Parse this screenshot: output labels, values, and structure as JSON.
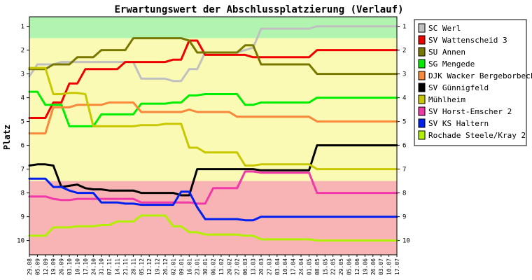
{
  "chart_data": {
    "type": "line",
    "title": "Erwartungswert der Abschlussplatzierung (Verlauf)",
    "ylabel": "Platz",
    "ylim": [
      0.6,
      10.6
    ],
    "y_reversed": true,
    "y_ticks": [
      1,
      2,
      3,
      4,
      5,
      6,
      7,
      8,
      9,
      10
    ],
    "grid": false,
    "legend_position": "right",
    "zones": [
      {
        "from": 0.6,
        "to": 1.5,
        "color": "#b0f4b0"
      },
      {
        "from": 1.5,
        "to": 7.5,
        "color": "#fafab4"
      },
      {
        "from": 7.5,
        "to": 10.6,
        "color": "#f8b4b4"
      }
    ],
    "x": [
      "29.08",
      "05.09",
      "12.09",
      "19.09",
      "26.09",
      "03.10",
      "10.10",
      "17.10",
      "24.10",
      "31.10",
      "07.11",
      "14.11",
      "21.11",
      "28.11",
      "05.12",
      "12.12",
      "19.12",
      "26.12",
      "02.01",
      "09.01",
      "16.01",
      "23.01",
      "30.01",
      "06.02",
      "13.02",
      "20.02",
      "27.02",
      "06.03",
      "13.03",
      "20.03",
      "27.03",
      "03.04",
      "10.04",
      "17.04",
      "24.04",
      "01.05",
      "08.05",
      "15.05",
      "22.05",
      "29.05",
      "05.06",
      "12.06",
      "19.06",
      "26.06",
      "03.07",
      "10.07",
      "17.07"
    ],
    "series": [
      {
        "name": "SC Werl",
        "color": "#c0c0c0",
        "values": [
          3.1,
          2.6,
          2.6,
          2.6,
          2.5,
          2.5,
          2.5,
          2.5,
          2.5,
          2.5,
          2.5,
          2.5,
          2.5,
          2.5,
          3.2,
          3.2,
          3.2,
          3.2,
          3.3,
          3.3,
          2.8,
          2.8,
          2.1,
          2.1,
          2.1,
          2.1,
          2.1,
          2.0,
          1.9,
          1.1,
          1.1,
          1.1,
          1.1,
          1.1,
          1.1,
          1.1,
          1.0,
          1.0,
          1.0,
          1.0,
          1.0,
          1.0,
          1.0,
          1.0,
          1.0,
          1.0,
          1.0
        ]
      },
      {
        "name": "SV Wattenscheid 3",
        "color": "#ee0000",
        "values": [
          4.85,
          4.85,
          4.85,
          4.2,
          4.2,
          3.4,
          3.4,
          2.8,
          2.8,
          2.8,
          2.8,
          2.8,
          2.5,
          2.5,
          2.5,
          2.5,
          2.5,
          2.5,
          2.4,
          2.4,
          1.6,
          1.6,
          2.2,
          2.2,
          2.2,
          2.2,
          2.2,
          2.2,
          2.3,
          2.3,
          2.3,
          2.3,
          2.3,
          2.3,
          2.3,
          2.3,
          2.0,
          2.0,
          2.0,
          2.0,
          2.0,
          2.0,
          2.0,
          2.0,
          2.0,
          2.0,
          2.0
        ]
      },
      {
        "name": "SU Annen",
        "color": "#787800",
        "values": [
          2.8,
          2.8,
          2.8,
          2.6,
          2.6,
          2.6,
          2.3,
          2.3,
          2.3,
          2.0,
          2.0,
          2.0,
          2.0,
          1.5,
          1.5,
          1.5,
          1.5,
          1.5,
          1.5,
          1.5,
          1.6,
          2.1,
          2.1,
          2.1,
          2.1,
          2.1,
          2.1,
          1.8,
          1.8,
          2.6,
          2.6,
          2.6,
          2.6,
          2.6,
          2.6,
          2.6,
          3.0,
          3.0,
          3.0,
          3.0,
          3.0,
          3.0,
          3.0,
          3.0,
          3.0,
          3.0,
          3.0
        ]
      },
      {
        "name": "SG Mengede",
        "color": "#00ee00",
        "values": [
          3.75,
          3.75,
          4.3,
          4.3,
          4.3,
          5.2,
          5.2,
          5.2,
          5.2,
          4.7,
          4.7,
          4.7,
          4.7,
          4.7,
          4.25,
          4.25,
          4.25,
          4.25,
          4.2,
          4.2,
          3.9,
          3.9,
          3.85,
          3.85,
          3.85,
          3.85,
          3.85,
          4.3,
          4.3,
          4.2,
          4.2,
          4.2,
          4.2,
          4.2,
          4.2,
          4.2,
          4.0,
          4.0,
          4.0,
          4.0,
          4.0,
          4.0,
          4.0,
          4.0,
          4.0,
          4.0,
          4.0
        ]
      },
      {
        "name": "DJK Wacker Bergeborbeck",
        "color": "#f8883a",
        "values": [
          5.5,
          5.5,
          5.5,
          4.4,
          4.4,
          4.4,
          4.3,
          4.3,
          4.3,
          4.3,
          4.2,
          4.2,
          4.2,
          4.2,
          4.6,
          4.6,
          4.6,
          4.6,
          4.6,
          4.6,
          4.5,
          4.6,
          4.6,
          4.6,
          4.6,
          4.6,
          4.8,
          4.8,
          4.8,
          4.8,
          4.8,
          4.8,
          4.8,
          4.8,
          4.8,
          4.8,
          5.0,
          5.0,
          5.0,
          5.0,
          5.0,
          5.0,
          5.0,
          5.0,
          5.0,
          5.0,
          5.0
        ]
      },
      {
        "name": "SV Günnigfeld",
        "color": "#000000",
        "values": [
          6.85,
          6.8,
          6.8,
          6.85,
          7.75,
          7.7,
          7.65,
          7.8,
          7.85,
          7.85,
          7.9,
          7.9,
          7.9,
          7.9,
          8.0,
          8.0,
          8.0,
          8.0,
          8.0,
          8.1,
          8.1,
          7.0,
          7.0,
          7.0,
          7.0,
          7.0,
          7.0,
          7.0,
          7.0,
          7.05,
          7.05,
          7.05,
          7.05,
          7.05,
          7.05,
          7.05,
          6.0,
          6.0,
          6.0,
          6.0,
          6.0,
          6.0,
          6.0,
          6.0,
          6.0,
          6.0,
          6.0
        ]
      },
      {
        "name": "Mühlheim",
        "color": "#c8c800",
        "values": [
          2.75,
          2.75,
          2.75,
          3.85,
          3.85,
          3.8,
          3.8,
          3.85,
          5.2,
          5.2,
          5.2,
          5.2,
          5.2,
          5.2,
          5.15,
          5.15,
          5.15,
          5.1,
          5.1,
          5.1,
          6.1,
          6.1,
          6.3,
          6.3,
          6.3,
          6.3,
          6.3,
          6.85,
          6.85,
          6.8,
          6.8,
          6.8,
          6.8,
          6.8,
          6.8,
          6.8,
          7.0,
          7.0,
          7.0,
          7.0,
          7.0,
          7.0,
          7.0,
          7.0,
          7.0,
          7.0,
          7.0
        ]
      },
      {
        "name": "SV Horst-Emscher 2",
        "color": "#f038a8",
        "values": [
          8.15,
          8.15,
          8.15,
          8.25,
          8.3,
          8.3,
          8.25,
          8.25,
          8.25,
          8.25,
          8.25,
          8.25,
          8.25,
          8.25,
          8.4,
          8.4,
          8.4,
          8.4,
          8.4,
          8.4,
          8.4,
          8.45,
          8.45,
          7.8,
          7.8,
          7.8,
          7.8,
          7.1,
          7.1,
          7.15,
          7.15,
          7.15,
          7.15,
          7.15,
          7.15,
          7.15,
          8.0,
          8.0,
          8.0,
          8.0,
          8.0,
          8.0,
          8.0,
          8.0,
          8.0,
          8.0,
          8.0
        ]
      },
      {
        "name": "SV KS Haltern",
        "color": "#0020f0",
        "values": [
          7.4,
          7.4,
          7.4,
          7.75,
          7.75,
          7.9,
          8.0,
          8.0,
          8.0,
          8.4,
          8.4,
          8.4,
          8.45,
          8.45,
          8.5,
          8.5,
          8.5,
          8.5,
          8.5,
          7.95,
          7.95,
          8.6,
          9.1,
          9.1,
          9.1,
          9.1,
          9.1,
          9.15,
          9.15,
          9.0,
          9.0,
          9.0,
          9.0,
          9.0,
          9.0,
          9.0,
          9.0,
          9.0,
          9.0,
          9.0,
          9.0,
          9.0,
          9.0,
          9.0,
          9.0,
          9.0,
          9.0
        ]
      },
      {
        "name": "Rochade Steele/Kray 2",
        "color": "#b0f000",
        "values": [
          9.8,
          9.8,
          9.8,
          9.45,
          9.45,
          9.45,
          9.4,
          9.4,
          9.4,
          9.35,
          9.35,
          9.2,
          9.2,
          9.2,
          8.95,
          8.95,
          8.95,
          8.95,
          9.4,
          9.4,
          9.65,
          9.65,
          9.75,
          9.75,
          9.75,
          9.75,
          9.75,
          9.8,
          9.8,
          9.95,
          9.95,
          9.95,
          9.95,
          9.95,
          9.95,
          9.95,
          10.0,
          10.0,
          10.0,
          10.0,
          10.0,
          10.0,
          10.0,
          10.0,
          10.0,
          10.0,
          10.0
        ]
      }
    ]
  }
}
